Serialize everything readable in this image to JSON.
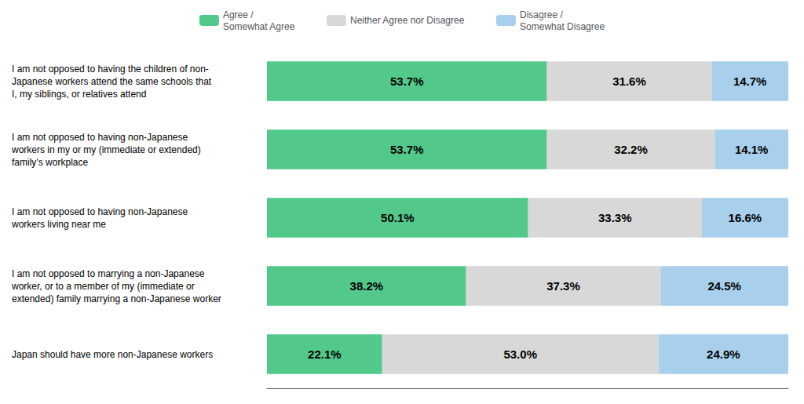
{
  "chart_data": {
    "type": "bar",
    "orientation": "horizontal",
    "stacked": true,
    "categories": [
      "I am not opposed to having the children of non-\nJapanese workers attend the same schools that\nI, my siblings, or relatives attend",
      "I am not opposed to having non-Japanese\nworkers in my or my (immediate or extended)\nfamily’s workplace",
      "I am not opposed to having non-Japanese\nworkers living near me",
      "I am not opposed to marrying a non-Japanese\nworker, or to a member of my (immediate or\nextended) family marrying a non-Japanese worker",
      "Japan should have more non-Japanese workers"
    ],
    "series": [
      {
        "name": "Agree /\nSomewhat Agree",
        "color": "#52C98B",
        "values": [
          53.7,
          53.7,
          50.1,
          38.2,
          22.1
        ],
        "value_labels": [
          "53.7%",
          "53.7%",
          "50.1%",
          "38.2%",
          "22.1%"
        ]
      },
      {
        "name": "Neither Agree nor Disagree",
        "color": "#D8D8D8",
        "values": [
          31.6,
          32.2,
          33.3,
          37.3,
          53.0
        ],
        "value_labels": [
          "31.6%",
          "32.2%",
          "33.3%",
          "37.3%",
          "53.0%"
        ]
      },
      {
        "name": "Disagree /\nSomewhat Disagree",
        "color": "#A8CFEC",
        "values": [
          14.7,
          14.1,
          16.6,
          24.5,
          24.9
        ],
        "value_labels": [
          "14.7%",
          "14.1%",
          "16.6%",
          "24.5%",
          "24.9%"
        ]
      }
    ],
    "xlim": [
      0,
      100
    ],
    "data_labels": true,
    "tick_labels": false,
    "grid": false,
    "legend": "top"
  }
}
